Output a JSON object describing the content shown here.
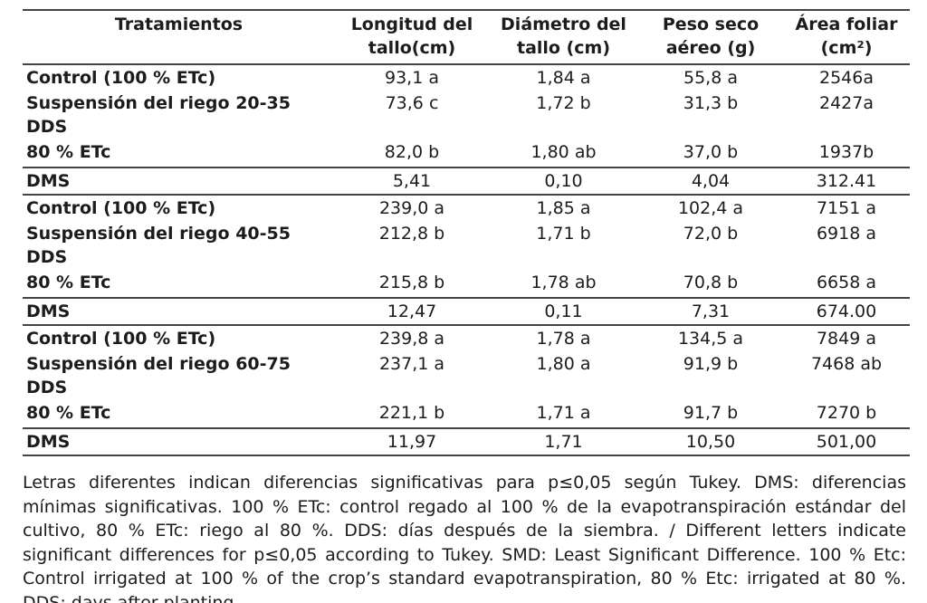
{
  "table": {
    "headers": [
      "Tratamientos",
      "Longitud del tallo(cm)",
      "Diámetro del tallo (cm)",
      "Peso seco aéreo (g)",
      "Área foliar (cm²)"
    ],
    "rows": [
      {
        "kind": "data",
        "cells": [
          "Control (100 % ETc)",
          "93,1 a",
          "1,84 a",
          "55,8 a",
          "2546a"
        ]
      },
      {
        "kind": "data",
        "cells": [
          "Suspensión del riego 20-35 DDS",
          "73,6 c",
          "1,72 b",
          "31,3 b",
          "2427a"
        ]
      },
      {
        "kind": "data",
        "cells": [
          "80 % ETc",
          "82,0 b",
          "1,80 ab",
          "37,0 b",
          "1937b"
        ]
      },
      {
        "kind": "dms",
        "cells": [
          "DMS",
          "5,41",
          "0,10",
          "4,04",
          "312.41"
        ]
      },
      {
        "kind": "data",
        "cells": [
          "Control (100 % ETc)",
          "239,0 a",
          "1,85 a",
          "102,4 a",
          "7151 a"
        ]
      },
      {
        "kind": "data",
        "cells": [
          "Suspensión del riego 40-55 DDS",
          "212,8 b",
          "1,71 b",
          "72,0 b",
          "6918 a"
        ]
      },
      {
        "kind": "data",
        "cells": [
          "80 % ETc",
          "215,8 b",
          "1,78 ab",
          "70,8 b",
          "6658 a"
        ]
      },
      {
        "kind": "dms",
        "cells": [
          "DMS",
          "12,47",
          "0,11",
          "7,31",
          "674.00"
        ]
      },
      {
        "kind": "data",
        "cells": [
          "Control (100 % ETc)",
          "239,8 a",
          "1,78 a",
          "134,5 a",
          "7849 a"
        ]
      },
      {
        "kind": "data",
        "cells": [
          "Suspensión del riego 60-75 DDS",
          "237,1 a",
          "1,80 a",
          "91,9 b",
          "7468 ab"
        ]
      },
      {
        "kind": "data",
        "cells": [
          "80 % ETc",
          "221,1 b",
          "1,71 a",
          "91,7 b",
          "7270 b"
        ]
      },
      {
        "kind": "dms",
        "cells": [
          "DMS",
          "11,97",
          "1,71",
          "10,50",
          "501,00"
        ]
      }
    ]
  },
  "footnote": "Letras diferentes indican diferencias significativas para p≤0,05 según Tukey. DMS: diferencias mínimas significativas. 100 % ETc: control regado al 100 % de la evapotranspiración estándar del cultivo, 80 % ETc: riego al 80 %. DDS: días después de la siembra. / Different letters indicate significant differences for p≤0,05 according to Tukey. SMD: Least Significant Difference. 100 % Etc: Control irrigated at 100 % of the crop’s standard evapotranspiration, 80 % Etc: irrigated at 80 %. DDS: days after planting."
}
